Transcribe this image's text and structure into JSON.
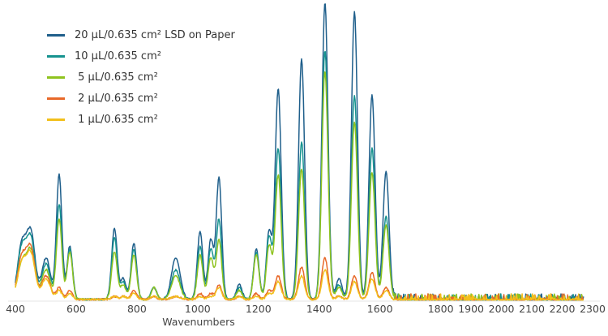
{
  "chart_data": {
    "type": "line",
    "title": "",
    "xlabel": "Wavenumbers",
    "ylabel": "",
    "xlim": [
      400,
      2300
    ],
    "ylim": [
      0,
      100
    ],
    "x_ticks": [
      400,
      600,
      800,
      1000,
      1200,
      1400,
      1600,
      1800,
      1900,
      2000,
      2100,
      2200,
      2300
    ],
    "grid": false,
    "legend_position": "top-left",
    "peak_centers": [
      421,
      451,
      501,
      544,
      579,
      726,
      755,
      790,
      856,
      928,
      1008,
      1043,
      1070,
      1137,
      1193,
      1235,
      1265,
      1342,
      1419,
      1465,
      1516,
      1574,
      1620
    ],
    "series": [
      {
        "name": "20 µL/0.635 cm² LSD on Paper",
        "color": "#1f5f8b",
        "peak_heights": [
          18,
          22,
          14,
          42,
          18,
          24,
          7,
          19,
          4,
          14,
          23,
          20,
          41,
          5,
          17,
          23,
          71,
          81,
          100,
          7,
          97,
          69,
          43
        ]
      },
      {
        "name": "10 µL/0.635 cm²",
        "color": "#16938f",
        "peak_heights": [
          17,
          20,
          12,
          32,
          17,
          21,
          6,
          17,
          4,
          10,
          18,
          17,
          27,
          4,
          16,
          21,
          51,
          53,
          84,
          5,
          69,
          51,
          28
        ]
      },
      {
        "name": " 5 µL/0.635 cm²",
        "color": "#8fc31f",
        "peak_heights": [
          12,
          16,
          10,
          27,
          16,
          16,
          5,
          15,
          4,
          8,
          15,
          14,
          20,
          3,
          15,
          18,
          42,
          44,
          77,
          4,
          60,
          43,
          25
        ]
      },
      {
        "name": " 2 µL/0.635 cm²",
        "color": "#e8692a",
        "peak_heights": [
          14,
          17,
          8,
          4,
          3,
          1,
          1,
          3,
          1,
          1,
          2,
          2,
          5,
          1,
          2,
          3,
          8,
          11,
          14,
          1,
          8,
          9,
          4
        ]
      },
      {
        "name": " 1 µL/0.635 cm²",
        "color": "#f2c01c",
        "peak_heights": [
          12,
          15,
          7,
          3,
          2,
          1,
          1,
          2,
          1,
          1,
          1,
          1,
          4,
          1,
          1,
          2,
          6,
          8,
          10,
          1,
          6,
          7,
          3
        ]
      }
    ]
  }
}
